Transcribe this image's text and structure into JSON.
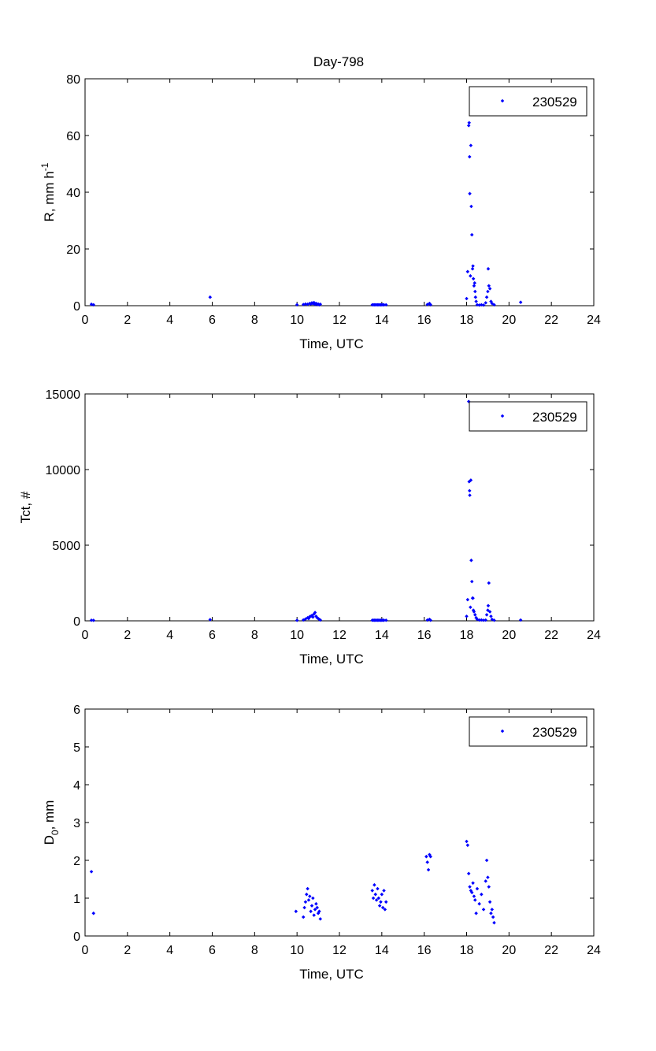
{
  "figure": {
    "title": "Day-798"
  },
  "chart_data": [
    {
      "type": "scatter",
      "xlabel": "Time, UTC",
      "ylabel": "R, mm h",
      "ylabel_superscript": "-1",
      "xlim": [
        0,
        24
      ],
      "ylim": [
        0,
        80
      ],
      "xticks": [
        0,
        2,
        4,
        6,
        8,
        10,
        12,
        14,
        16,
        18,
        20,
        22,
        24
      ],
      "yticks": [
        0,
        20,
        40,
        60,
        80
      ],
      "legend": "top-right",
      "color": "#0000ff",
      "series": [
        {
          "name": "230529",
          "x": [
            0.3,
            0.4,
            5.9,
            10.0,
            10.3,
            10.4,
            10.5,
            10.6,
            10.65,
            10.7,
            10.75,
            10.8,
            10.85,
            10.9,
            10.95,
            11.0,
            11.05,
            11.1,
            13.55,
            13.6,
            13.65,
            13.7,
            13.75,
            13.8,
            13.85,
            13.9,
            13.95,
            14.0,
            14.05,
            14.1,
            14.2,
            16.15,
            16.25,
            16.3,
            18.0,
            18.05,
            18.1,
            18.12,
            18.14,
            18.15,
            18.18,
            18.2,
            18.22,
            18.25,
            18.28,
            18.3,
            18.32,
            18.35,
            18.38,
            18.4,
            18.42,
            18.45,
            18.5,
            18.6,
            18.7,
            18.8,
            18.9,
            18.95,
            19.0,
            19.02,
            19.05,
            19.1,
            19.15,
            19.2,
            19.3,
            20.55
          ],
          "y": [
            0.5,
            0.3,
            3.0,
            0.3,
            0.4,
            0.6,
            0.5,
            0.8,
            0.6,
            1.0,
            0.7,
            1.1,
            0.5,
            0.8,
            0.4,
            0.6,
            0.3,
            0.5,
            0.3,
            0.3,
            0.3,
            0.3,
            0.3,
            0.3,
            0.3,
            0.3,
            0.3,
            0.3,
            0.3,
            0.3,
            0.3,
            0.4,
            0.8,
            0.3,
            2.5,
            12.0,
            63.5,
            64.5,
            52.5,
            39.5,
            10.5,
            56.5,
            35.0,
            25.0,
            13.0,
            14.0,
            9.5,
            7.0,
            8.0,
            5.0,
            3.0,
            1.5,
            0.3,
            0.2,
            0.3,
            0.2,
            1.0,
            3.0,
            5.0,
            13.0,
            7.0,
            6.0,
            1.5,
            0.8,
            0.3,
            1.2
          ]
        }
      ]
    },
    {
      "type": "scatter",
      "xlabel": "Time, UTC",
      "ylabel": "Tct, #",
      "xlim": [
        0,
        24
      ],
      "ylim": [
        0,
        15000
      ],
      "xticks": [
        0,
        2,
        4,
        6,
        8,
        10,
        12,
        14,
        16,
        18,
        20,
        22,
        24
      ],
      "yticks": [
        0,
        5000,
        10000,
        15000
      ],
      "legend": "top-right",
      "color": "#0000ff",
      "series": [
        {
          "name": "230529",
          "x": [
            0.3,
            0.4,
            5.9,
            10.0,
            10.3,
            10.4,
            10.5,
            10.55,
            10.6,
            10.65,
            10.7,
            10.75,
            10.8,
            10.85,
            10.9,
            10.95,
            11.0,
            11.05,
            11.1,
            13.55,
            13.6,
            13.65,
            13.7,
            13.75,
            13.8,
            13.85,
            13.9,
            13.95,
            14.0,
            14.05,
            14.1,
            14.2,
            16.15,
            16.25,
            16.3,
            18.0,
            18.05,
            18.1,
            18.12,
            18.14,
            18.15,
            18.18,
            18.2,
            18.22,
            18.25,
            18.28,
            18.3,
            18.32,
            18.35,
            18.4,
            18.45,
            18.5,
            18.6,
            18.7,
            18.8,
            18.9,
            18.95,
            19.0,
            19.02,
            19.05,
            19.1,
            19.15,
            19.2,
            19.3,
            20.55
          ],
          "y": [
            40,
            30,
            80,
            30,
            60,
            120,
            200,
            150,
            280,
            300,
            350,
            250,
            450,
            550,
            300,
            200,
            150,
            100,
            50,
            40,
            40,
            40,
            40,
            40,
            40,
            40,
            40,
            40,
            40,
            40,
            40,
            40,
            50,
            100,
            40,
            300,
            1400,
            14500,
            9200,
            8600,
            8300,
            900,
            9300,
            4000,
            2600,
            1500,
            1500,
            700,
            600,
            400,
            200,
            100,
            50,
            60,
            40,
            50,
            400,
            700,
            1000,
            2500,
            600,
            300,
            100,
            40,
            50
          ]
        }
      ]
    },
    {
      "type": "scatter",
      "xlabel": "Time, UTC",
      "ylabel": "D",
      "ylabel_subscript": "0",
      "ylabel_suffix": ", mm",
      "xlim": [
        0,
        24
      ],
      "ylim": [
        0,
        6
      ],
      "xticks": [
        0,
        2,
        4,
        6,
        8,
        10,
        12,
        14,
        16,
        18,
        20,
        22,
        24
      ],
      "yticks": [
        0,
        1,
        2,
        3,
        4,
        5,
        6
      ],
      "legend": "top-right",
      "color": "#0000ff",
      "series": [
        {
          "name": "230529",
          "x": [
            0.3,
            0.4,
            9.95,
            10.3,
            10.35,
            10.4,
            10.45,
            10.5,
            10.55,
            10.6,
            10.65,
            10.7,
            10.75,
            10.8,
            10.85,
            10.9,
            10.95,
            11.0,
            11.05,
            11.1,
            13.55,
            13.6,
            13.65,
            13.7,
            13.75,
            13.8,
            13.85,
            13.9,
            13.95,
            14.0,
            14.05,
            14.1,
            14.15,
            14.2,
            16.1,
            16.15,
            16.2,
            16.25,
            16.3,
            18.0,
            18.05,
            18.1,
            18.15,
            18.2,
            18.25,
            18.3,
            18.35,
            18.4,
            18.45,
            18.5,
            18.6,
            18.7,
            18.8,
            18.9,
            18.95,
            19.0,
            19.05,
            19.1,
            19.15,
            19.2,
            19.25,
            19.3
          ],
          "y": [
            1.7,
            0.6,
            0.65,
            0.5,
            0.75,
            0.9,
            1.1,
            1.25,
            0.95,
            1.05,
            0.65,
            0.8,
            1.0,
            0.55,
            0.7,
            0.85,
            0.75,
            0.6,
            0.65,
            0.45,
            1.2,
            1.0,
            1.35,
            1.1,
            0.95,
            1.25,
            1.0,
            0.8,
            0.9,
            1.1,
            0.75,
            1.2,
            0.7,
            0.9,
            2.1,
            1.95,
            1.75,
            2.15,
            2.1,
            2.5,
            2.4,
            1.65,
            1.3,
            1.2,
            1.15,
            1.4,
            1.05,
            0.95,
            0.6,
            1.25,
            0.85,
            1.1,
            0.7,
            1.45,
            2.0,
            1.55,
            1.3,
            0.9,
            0.6,
            0.7,
            0.5,
            0.35
          ]
        }
      ]
    }
  ]
}
